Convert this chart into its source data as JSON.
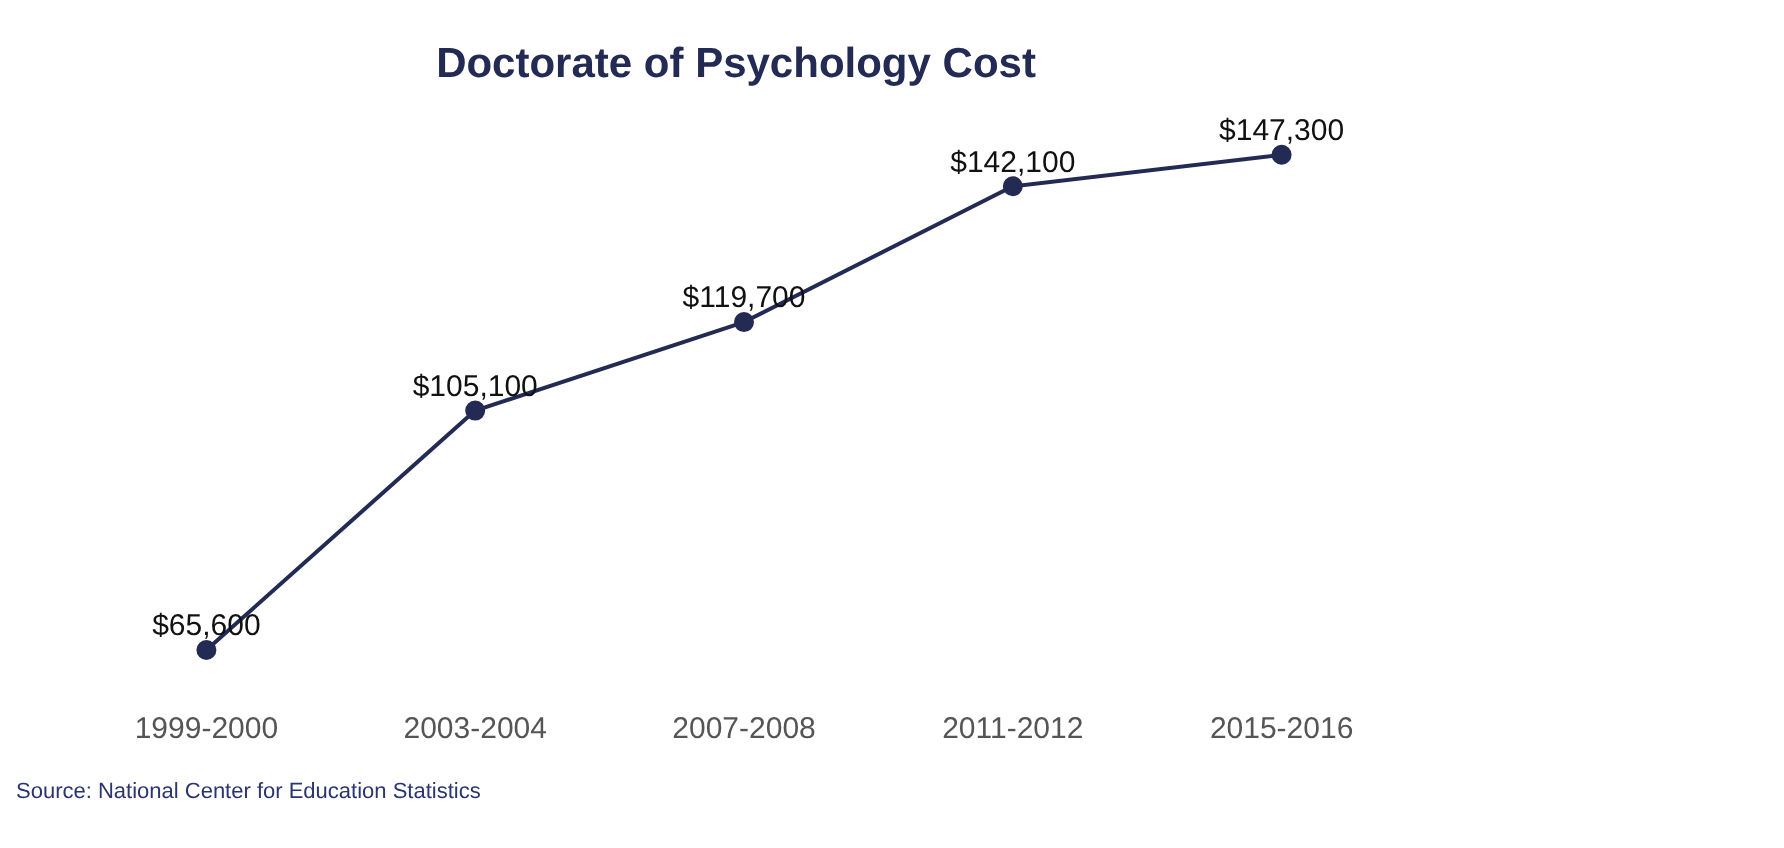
{
  "chart_data": {
    "type": "line",
    "title": "Doctorate of Psychology Cost",
    "categories": [
      "1999-2000",
      "2003-2004",
      "2007-2008",
      "2011-2012",
      "2015-2016"
    ],
    "series": [
      {
        "color": "#232b55",
        "values": [
          65600,
          105100,
          119700,
          142100,
          147300
        ],
        "value_labels": [
          "$65,600",
          "$105,100",
          "$119,700",
          "$142,100",
          "$147,300"
        ]
      }
    ],
    "relative": false,
    "marker": "circle",
    "line_style": "solid",
    "grid": false,
    "legend": false,
    "annotations": [
      "Source: National Center for Education Statistics"
    ]
  }
}
